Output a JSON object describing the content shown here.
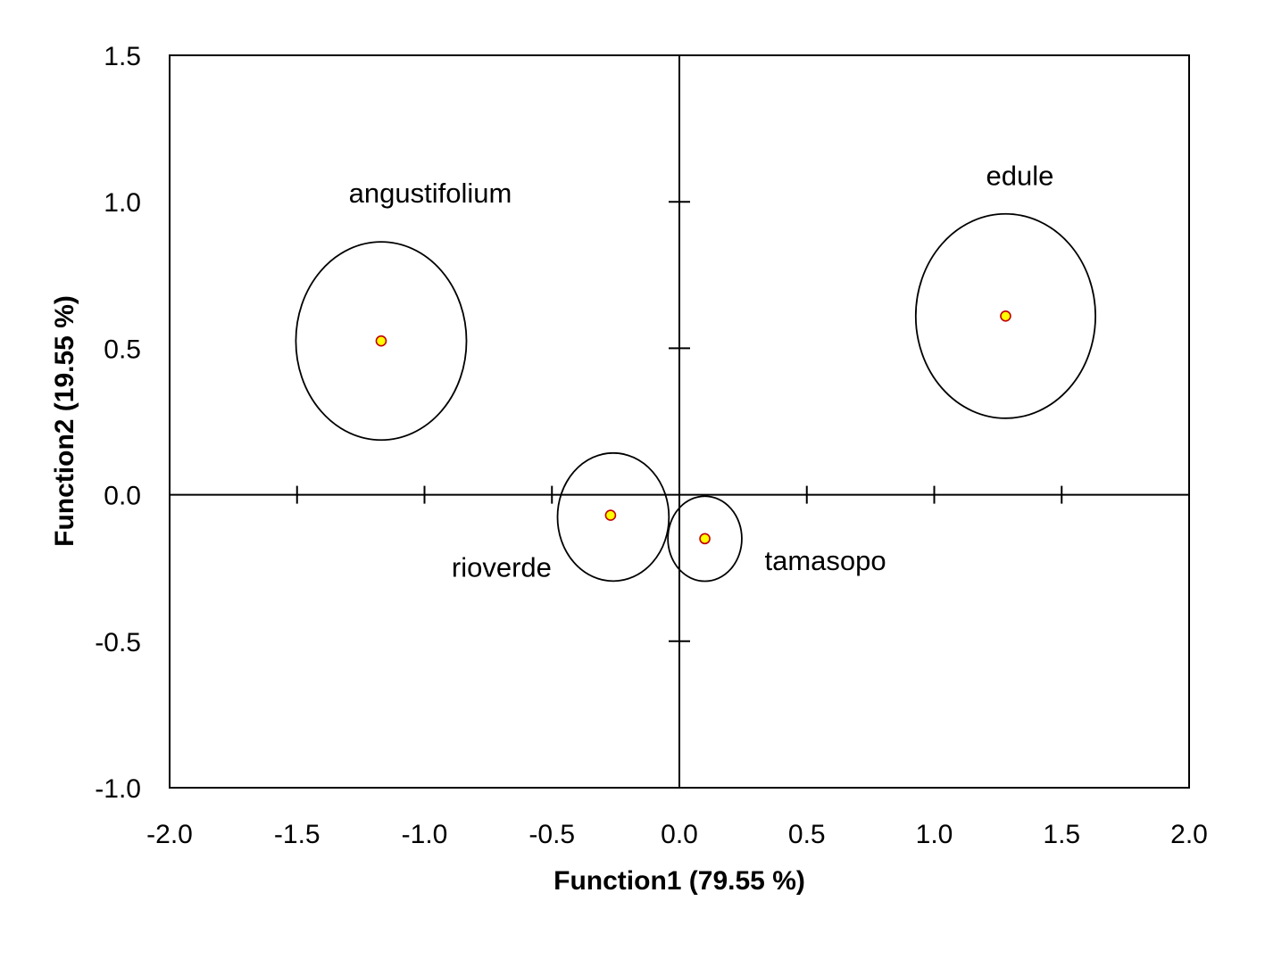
{
  "chart_data": {
    "type": "scatter",
    "title": "",
    "xlabel": "Function1 (79.55 %)",
    "ylabel": "Function2 (19.55 %)",
    "xlim": [
      -2.0,
      2.0
    ],
    "ylim": [
      -1.0,
      1.5
    ],
    "xticks": [
      -2.0,
      -1.5,
      -1.0,
      -0.5,
      0.0,
      0.5,
      1.0,
      1.5,
      2.0
    ],
    "yticks": [
      -1.0,
      -0.5,
      0.0,
      0.5,
      1.0,
      1.5
    ],
    "xtick_labels": [
      "-2.0",
      "-1.5",
      "-1.0",
      "-0.5",
      "0.0",
      "0.5",
      "1.0",
      "1.5",
      "2.0"
    ],
    "ytick_labels": [
      "-1.0",
      "-0.5",
      "0.0",
      "0.5",
      "1.0",
      "1.5"
    ],
    "grid": false,
    "legend": "none",
    "reference_lines": {
      "x": 0.0,
      "y": 0.0
    },
    "marker_fill": "#ffff00",
    "marker_edge": "#c00000",
    "groups": [
      {
        "label": "angustifolium",
        "centroid": [
          -1.17,
          0.525
        ],
        "ellipse_radii": [
          0.345,
          0.345
        ]
      },
      {
        "label": "edule",
        "centroid": [
          1.28,
          0.61
        ],
        "ellipse_radii": [
          0.375,
          0.375
        ]
      },
      {
        "label": "rioverde",
        "centroid": [
          -0.27,
          -0.07
        ],
        "ellipse_radii": [
          0.235,
          0.235
        ]
      },
      {
        "label": "tamasopo",
        "centroid": [
          0.1,
          -0.15
        ],
        "ellipse_radii": [
          0.145,
          0.145
        ]
      }
    ]
  }
}
